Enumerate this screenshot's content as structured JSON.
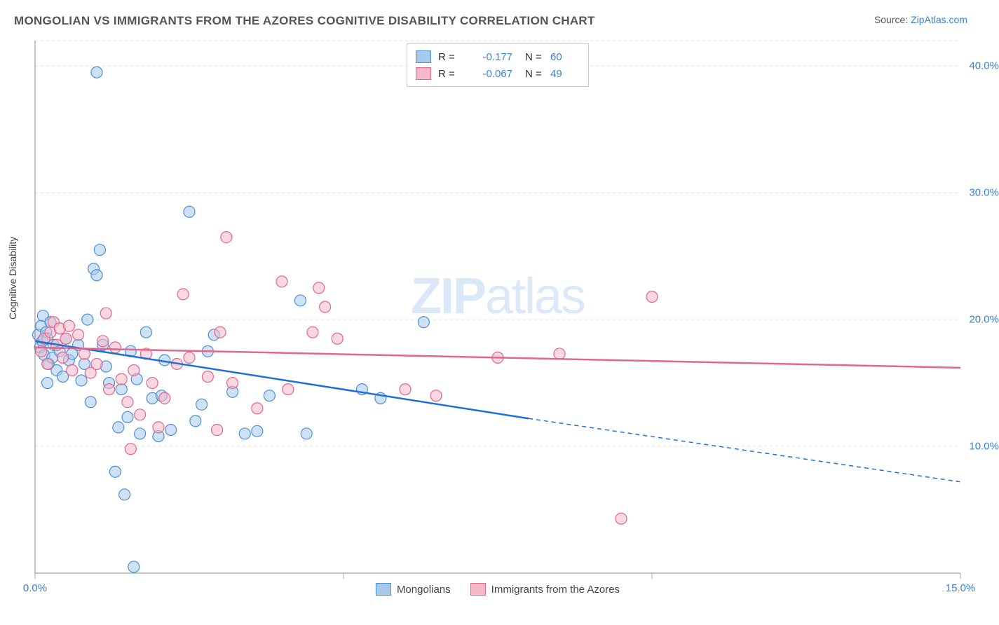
{
  "title": "MONGOLIAN VS IMMIGRANTS FROM THE AZORES COGNITIVE DISABILITY CORRELATION CHART",
  "source_prefix": "Source: ",
  "source_link": "ZipAtlas.com",
  "y_axis_label": "Cognitive Disability",
  "watermark_bold": "ZIP",
  "watermark_rest": "atlas",
  "chart": {
    "type": "scatter",
    "xlim": [
      0,
      15
    ],
    "ylim": [
      0,
      42
    ],
    "xticks": [
      {
        "v": 0,
        "label": "0.0%"
      },
      {
        "v": 15,
        "label": "15.0%"
      }
    ],
    "xticks_minor": [
      5,
      10
    ],
    "yticks": [
      {
        "v": 10,
        "label": "10.0%"
      },
      {
        "v": 20,
        "label": "20.0%"
      },
      {
        "v": 30,
        "label": "30.0%"
      },
      {
        "v": 40,
        "label": "40.0%"
      }
    ],
    "background_color": "#ffffff",
    "grid_color": "#e0e0e0",
    "axis_color": "#888888",
    "series": [
      {
        "name": "Mongolians",
        "fill": "#a8c8ec",
        "stroke": "#4f8fd6",
        "fill_opacity": 0.55,
        "marker_r": 8,
        "r_value": "-0.177",
        "n_value": "60",
        "regression": {
          "x1": 0,
          "y1": 18.3,
          "x2": 8.0,
          "y2": 12.2,
          "x3": 15.0,
          "y3": 7.2,
          "color": "#1e6fd9",
          "width": 2.5
        },
        "points": [
          [
            0.05,
            18.8
          ],
          [
            0.08,
            17.8
          ],
          [
            0.1,
            19.5
          ],
          [
            0.12,
            18.3
          ],
          [
            0.13,
            20.3
          ],
          [
            0.15,
            17.2
          ],
          [
            0.18,
            19.0
          ],
          [
            0.2,
            15.0
          ],
          [
            0.2,
            18.5
          ],
          [
            0.22,
            16.5
          ],
          [
            0.25,
            19.8
          ],
          [
            0.28,
            17.0
          ],
          [
            0.3,
            18.0
          ],
          [
            0.35,
            16.0
          ],
          [
            0.4,
            17.5
          ],
          [
            0.45,
            15.5
          ],
          [
            0.5,
            18.5
          ],
          [
            0.55,
            16.8
          ],
          [
            0.6,
            17.3
          ],
          [
            0.7,
            18.0
          ],
          [
            0.75,
            15.2
          ],
          [
            0.8,
            16.5
          ],
          [
            0.85,
            20.0
          ],
          [
            0.9,
            13.5
          ],
          [
            0.95,
            24.0
          ],
          [
            1.0,
            39.5
          ],
          [
            1.0,
            23.5
          ],
          [
            1.05,
            25.5
          ],
          [
            1.1,
            18.0
          ],
          [
            1.15,
            16.3
          ],
          [
            1.2,
            15.0
          ],
          [
            1.3,
            8.0
          ],
          [
            1.35,
            11.5
          ],
          [
            1.4,
            14.5
          ],
          [
            1.45,
            6.2
          ],
          [
            1.5,
            12.3
          ],
          [
            1.55,
            17.5
          ],
          [
            1.6,
            0.5
          ],
          [
            1.65,
            15.3
          ],
          [
            1.7,
            11.0
          ],
          [
            1.8,
            19.0
          ],
          [
            1.9,
            13.8
          ],
          [
            2.0,
            10.8
          ],
          [
            2.05,
            14.0
          ],
          [
            2.1,
            16.8
          ],
          [
            2.2,
            11.3
          ],
          [
            2.5,
            28.5
          ],
          [
            2.6,
            12.0
          ],
          [
            2.7,
            13.3
          ],
          [
            2.8,
            17.5
          ],
          [
            2.9,
            18.8
          ],
          [
            3.2,
            14.3
          ],
          [
            3.4,
            11.0
          ],
          [
            3.6,
            11.2
          ],
          [
            3.8,
            14.0
          ],
          [
            4.3,
            21.5
          ],
          [
            4.4,
            11.0
          ],
          [
            5.3,
            14.5
          ],
          [
            5.6,
            13.8
          ],
          [
            6.3,
            19.8
          ]
        ]
      },
      {
        "name": "Immigrants from the Azores",
        "fill": "#f4b8c8",
        "stroke": "#e4658f",
        "fill_opacity": 0.55,
        "marker_r": 8,
        "r_value": "-0.067",
        "n_value": "49",
        "regression": {
          "x1": 0,
          "y1": 17.8,
          "x2": 15.0,
          "y2": 16.2,
          "color": "#e4658f",
          "width": 2.5
        },
        "points": [
          [
            0.1,
            17.5
          ],
          [
            0.15,
            18.5
          ],
          [
            0.2,
            16.5
          ],
          [
            0.25,
            19.0
          ],
          [
            0.3,
            19.8
          ],
          [
            0.35,
            18.0
          ],
          [
            0.4,
            19.3
          ],
          [
            0.45,
            17.0
          ],
          [
            0.5,
            18.5
          ],
          [
            0.55,
            19.5
          ],
          [
            0.6,
            16.0
          ],
          [
            0.7,
            18.8
          ],
          [
            0.8,
            17.3
          ],
          [
            0.9,
            15.8
          ],
          [
            1.0,
            16.5
          ],
          [
            1.1,
            18.3
          ],
          [
            1.15,
            20.5
          ],
          [
            1.2,
            14.5
          ],
          [
            1.3,
            17.8
          ],
          [
            1.4,
            15.3
          ],
          [
            1.5,
            13.5
          ],
          [
            1.55,
            9.8
          ],
          [
            1.6,
            16.0
          ],
          [
            1.7,
            12.5
          ],
          [
            1.8,
            17.3
          ],
          [
            1.9,
            15.0
          ],
          [
            2.0,
            11.5
          ],
          [
            2.1,
            13.8
          ],
          [
            2.3,
            16.5
          ],
          [
            2.4,
            22.0
          ],
          [
            2.5,
            17.0
          ],
          [
            2.8,
            15.5
          ],
          [
            2.95,
            11.3
          ],
          [
            3.0,
            19.0
          ],
          [
            3.1,
            26.5
          ],
          [
            3.2,
            15.0
          ],
          [
            3.6,
            13.0
          ],
          [
            4.0,
            23.0
          ],
          [
            4.1,
            14.5
          ],
          [
            4.5,
            19.0
          ],
          [
            4.6,
            22.5
          ],
          [
            4.7,
            21.0
          ],
          [
            4.9,
            18.5
          ],
          [
            6.0,
            14.5
          ],
          [
            6.5,
            14.0
          ],
          [
            7.5,
            17.0
          ],
          [
            8.5,
            17.3
          ],
          [
            9.5,
            4.3
          ],
          [
            10.0,
            21.8
          ]
        ]
      }
    ]
  },
  "legend_top": {
    "r_label": "R =",
    "n_label": "N ="
  },
  "legend_bottom_labels": [
    "Mongolians",
    "Immigrants from the Azores"
  ]
}
